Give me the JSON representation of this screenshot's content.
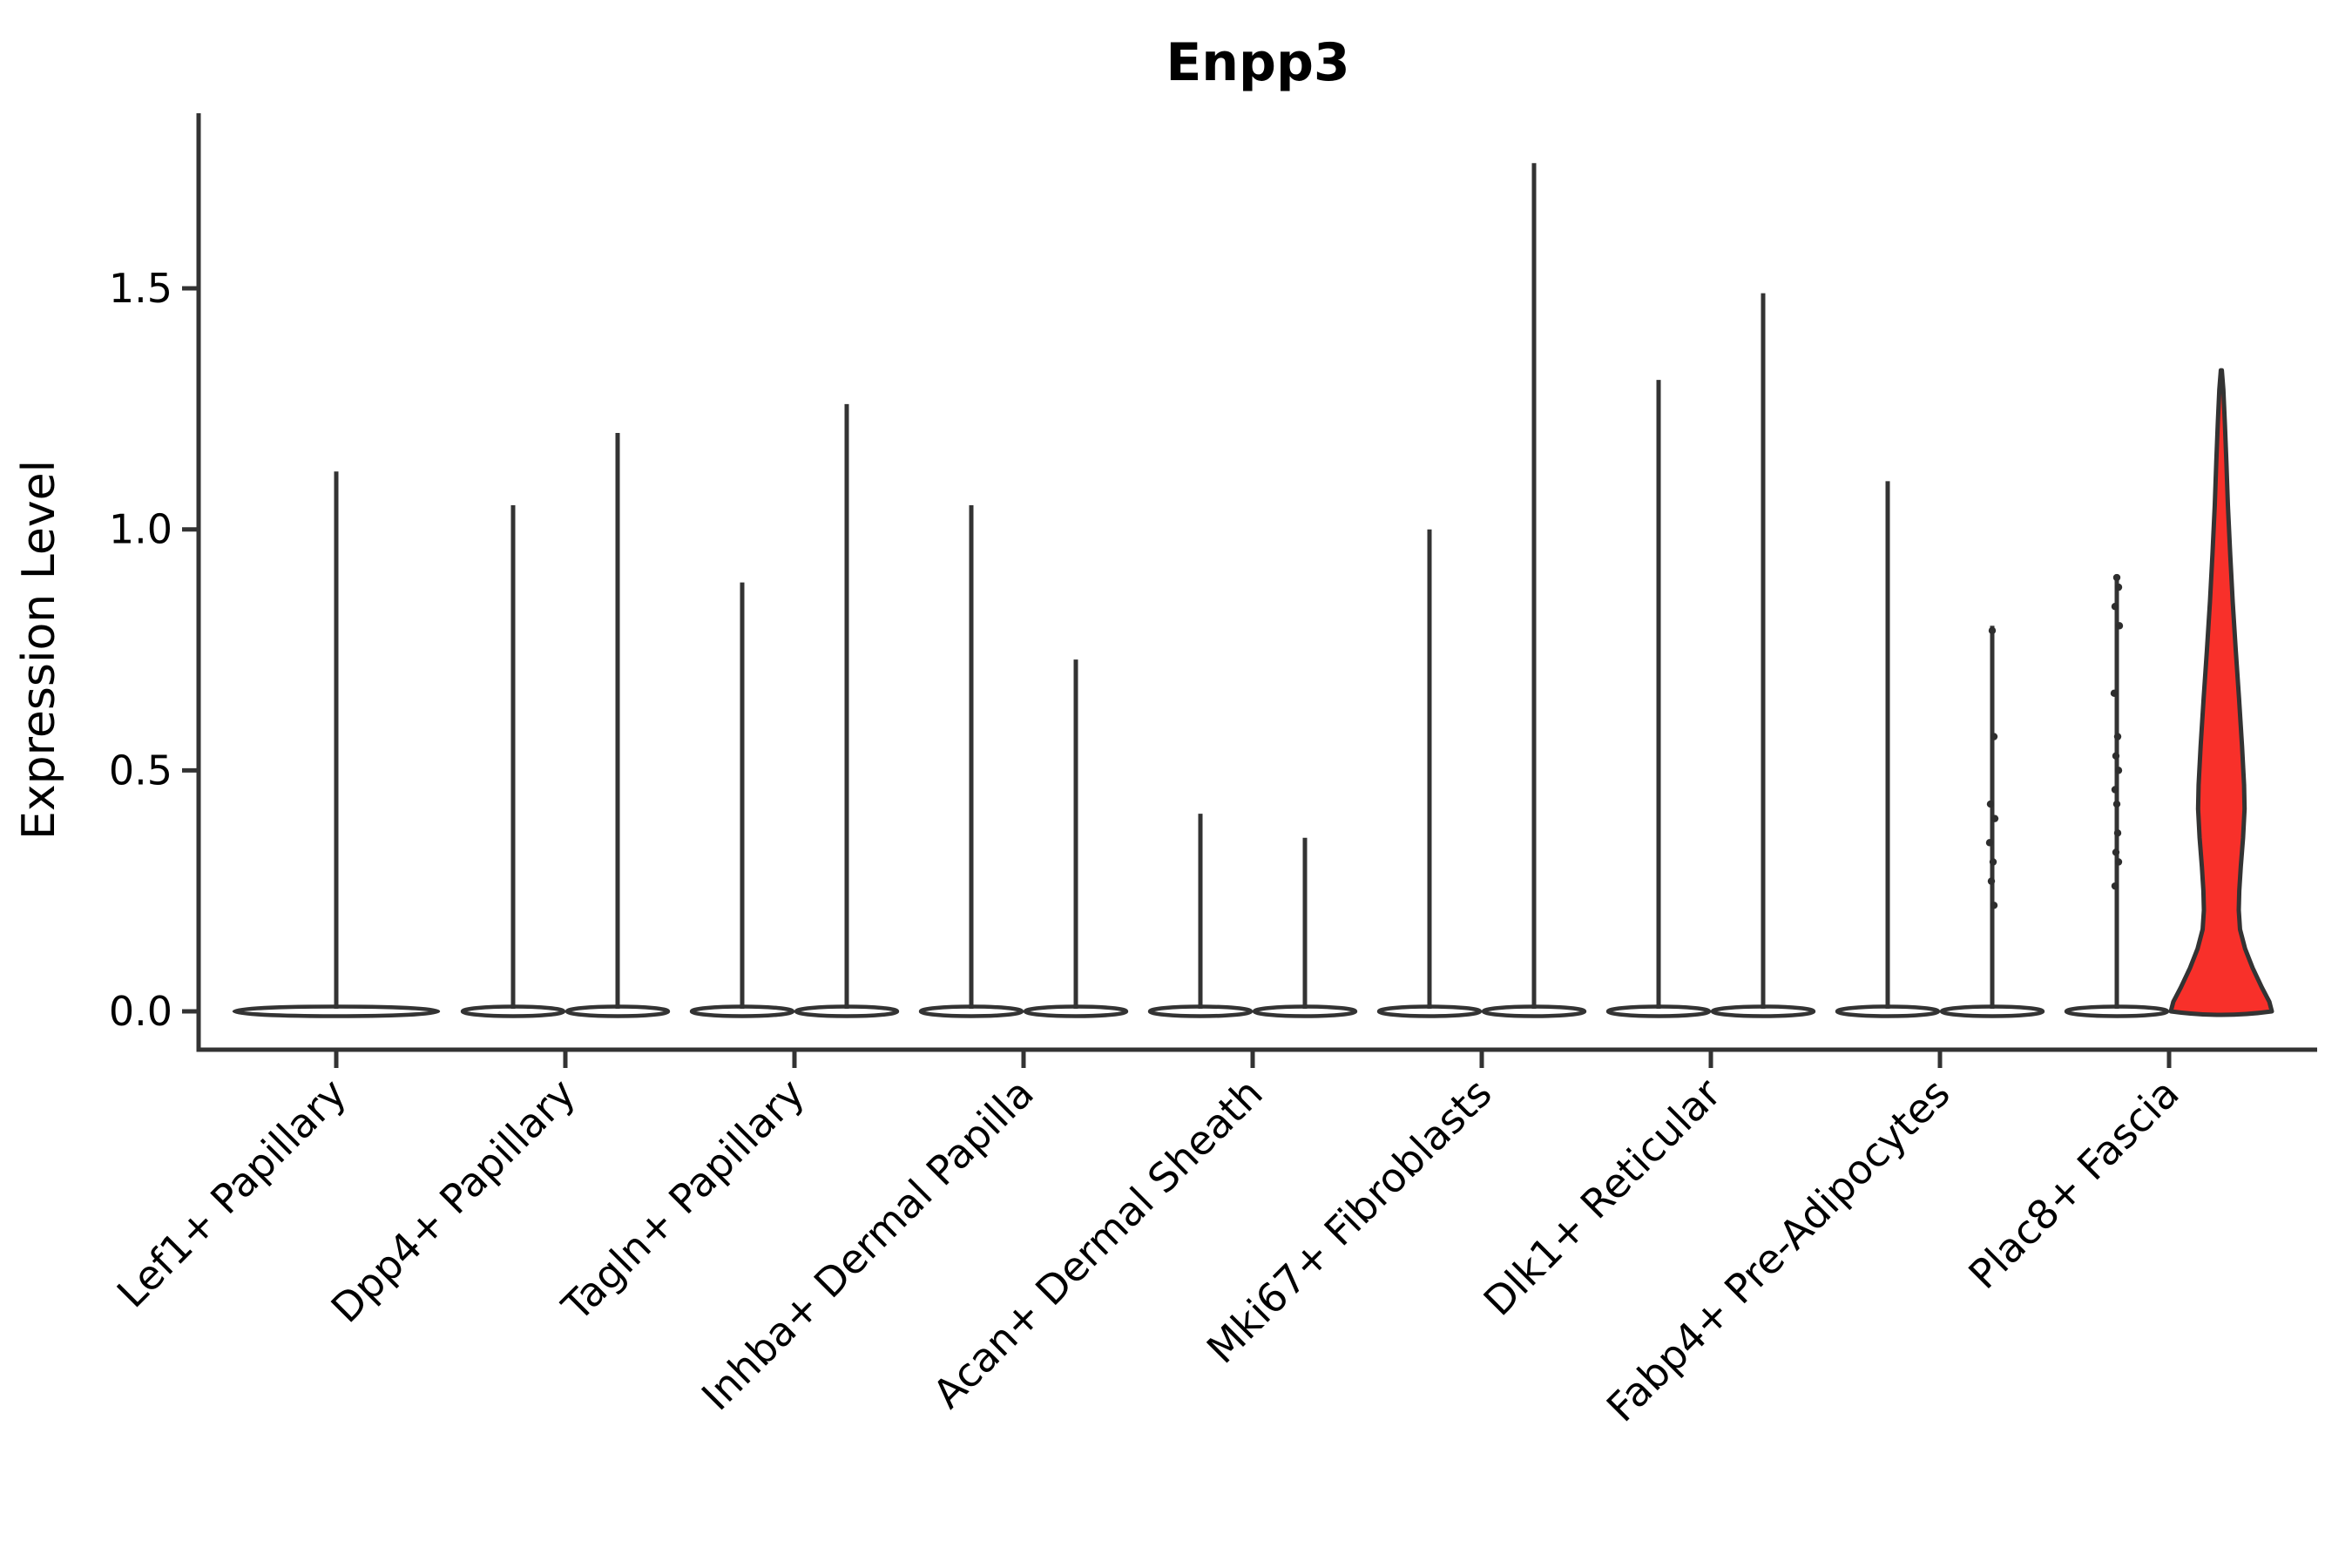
{
  "figure": {
    "background": "#ffffff"
  },
  "chart_data": {
    "type": "violin",
    "title": "Enpp3",
    "xlabel": "",
    "ylabel": "Expression Level",
    "ylim": [
      -0.08,
      1.86
    ],
    "y_ticks": [
      0.0,
      0.5,
      1.0,
      1.5
    ],
    "y_tick_labels": [
      "0.0",
      "0.5",
      "1.0",
      "1.5"
    ],
    "grid": false,
    "legend": null,
    "categories": [
      "Lef1+ Papillary",
      "Dpp4+ Papillary",
      "Tagln+ Papillary",
      "Inhba+ Dermal Papilla",
      "Acan+ Dermal Sheath",
      "Mki67+ Fibroblasts",
      "Dlk1+ Reticular",
      "Fabp4+ Pre-Adipocytes",
      "Plac8+ Fascia"
    ],
    "colors": {
      "outline": "#333333",
      "violin_fill": "#ffffff",
      "highlight_fill": "#f8302a",
      "dot": "#2e2e2e",
      "text": "#000000"
    },
    "violins": [
      {
        "category": "Lef1+ Papillary",
        "slot": "center",
        "max": 1.12,
        "highlight": false,
        "dots": []
      },
      {
        "category": "Dpp4+ Papillary",
        "slot": "left",
        "max": 1.05,
        "highlight": false,
        "dots": []
      },
      {
        "category": "Dpp4+ Papillary",
        "slot": "right",
        "max": 1.2,
        "highlight": false,
        "dots": []
      },
      {
        "category": "Tagln+ Papillary",
        "slot": "left",
        "max": 0.89,
        "highlight": false,
        "dots": []
      },
      {
        "category": "Tagln+ Papillary",
        "slot": "right",
        "max": 1.26,
        "highlight": false,
        "dots": []
      },
      {
        "category": "Inhba+ Dermal Papilla",
        "slot": "left",
        "max": 1.05,
        "highlight": false,
        "dots": []
      },
      {
        "category": "Inhba+ Dermal Papilla",
        "slot": "right",
        "max": 0.73,
        "highlight": false,
        "dots": []
      },
      {
        "category": "Acan+ Dermal Sheath",
        "slot": "left",
        "max": 0.41,
        "highlight": false,
        "dots": []
      },
      {
        "category": "Acan+ Dermal Sheath",
        "slot": "right",
        "max": 0.36,
        "highlight": false,
        "dots": []
      },
      {
        "category": "Mki67+ Fibroblasts",
        "slot": "left",
        "max": 1.0,
        "highlight": false,
        "dots": []
      },
      {
        "category": "Mki67+ Fibroblasts",
        "slot": "right",
        "max": 1.76,
        "highlight": false,
        "dots": []
      },
      {
        "category": "Dlk1+ Reticular",
        "slot": "left",
        "max": 1.31,
        "highlight": false,
        "dots": []
      },
      {
        "category": "Dlk1+ Reticular",
        "slot": "right",
        "max": 1.49,
        "highlight": false,
        "dots": []
      },
      {
        "category": "Fabp4+ Pre-Adipocytes",
        "slot": "left",
        "max": 1.1,
        "highlight": false,
        "dots": []
      },
      {
        "category": "Fabp4+ Pre-Adipocytes",
        "slot": "right",
        "max": 0.8,
        "highlight": false,
        "dots": [
          0.79,
          0.57,
          0.43,
          0.4,
          0.35,
          0.31,
          0.27,
          0.22
        ]
      },
      {
        "category": "Plac8+ Fascia",
        "slot": "left",
        "max": 0.9,
        "highlight": false,
        "dots": [
          0.9,
          0.88,
          0.84,
          0.8,
          0.66,
          0.57,
          0.53,
          0.5,
          0.46,
          0.43,
          0.37,
          0.33,
          0.31,
          0.26
        ]
      },
      {
        "category": "Plac8+ Fascia",
        "slot": "right",
        "max": 1.33,
        "highlight": true,
        "dots": [],
        "profile": [
          [
            1.33,
            0.01
          ],
          [
            1.29,
            0.04
          ],
          [
            1.22,
            0.07
          ],
          [
            1.14,
            0.1
          ],
          [
            1.05,
            0.13
          ],
          [
            0.95,
            0.175
          ],
          [
            0.85,
            0.225
          ],
          [
            0.75,
            0.285
          ],
          [
            0.65,
            0.35
          ],
          [
            0.55,
            0.41
          ],
          [
            0.47,
            0.45
          ],
          [
            0.42,
            0.46
          ],
          [
            0.36,
            0.43
          ],
          [
            0.3,
            0.385
          ],
          [
            0.25,
            0.355
          ],
          [
            0.21,
            0.345
          ],
          [
            0.17,
            0.37
          ],
          [
            0.13,
            0.47
          ],
          [
            0.09,
            0.62
          ],
          [
            0.05,
            0.8
          ],
          [
            0.02,
            0.95
          ],
          [
            0.0,
            1.0
          ]
        ]
      }
    ]
  }
}
